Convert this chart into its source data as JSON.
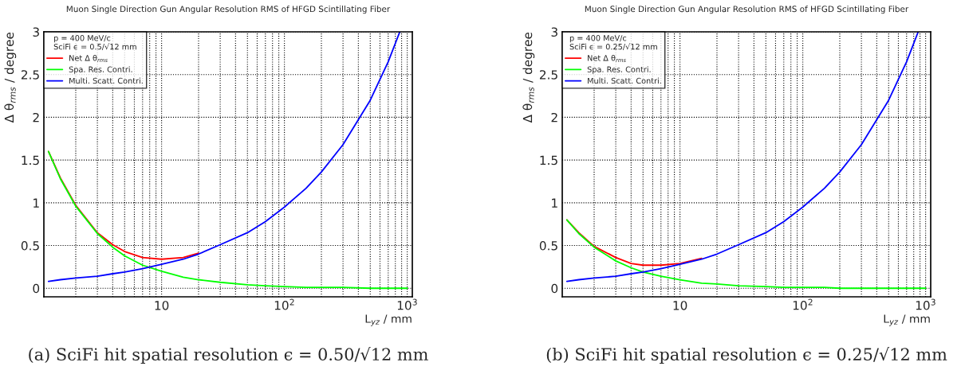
{
  "chart_data": [
    {
      "type": "line",
      "title": "Muon Single Direction Gun Angular Resolution RMS of HFGD Scintillating Fiber",
      "xlabel": "L$_{yz}$ / mm",
      "ylabel": "Δ θ$_{rms}$ / degree",
      "legend_title": "p = 400 MeV/c\nSciFi ϵ = 0.5/√12 mm",
      "legend": "top left",
      "log": "x",
      "grid": true,
      "x": [
        1.2,
        1.5,
        2,
        3,
        4,
        5,
        7,
        10,
        15,
        20,
        30,
        50,
        70,
        100,
        150,
        200,
        300,
        500,
        700,
        870,
        1000
      ],
      "series": [
        {
          "name": "Net Δ θ$_{rms}$",
          "color": "#ff0000",
          "values": [
            1.6,
            1.29,
            0.97,
            0.65,
            0.51,
            0.43,
            0.36,
            0.34,
            0.36,
            0.41,
            null,
            null,
            null,
            null,
            null,
            null,
            null,
            null,
            null,
            null,
            null
          ]
        },
        {
          "name": "Spa. Res. Contri.",
          "color": "#00ff00",
          "values": [
            1.6,
            1.28,
            0.96,
            0.64,
            0.48,
            0.38,
            0.27,
            0.2,
            0.13,
            0.1,
            0.07,
            0.04,
            0.03,
            0.02,
            0.01,
            0.01,
            0.01,
            0,
            0,
            0,
            0
          ]
        },
        {
          "name": "Multi. Scatt. Contri.",
          "color": "#0000ff",
          "values": [
            0.08,
            0.1,
            0.12,
            0.14,
            0.17,
            0.19,
            0.23,
            0.28,
            0.34,
            0.4,
            0.51,
            0.65,
            0.78,
            0.95,
            1.17,
            1.36,
            1.68,
            2.2,
            2.65,
            3.0,
            null
          ]
        }
      ],
      "xlim": [
        1.1,
        1100
      ],
      "ylim": [
        -0.1,
        3
      ],
      "xticks": [
        {
          "value": 2,
          "label": null
        },
        {
          "value": 3,
          "label": null
        },
        {
          "value": 4,
          "label": null
        },
        {
          "value": 5,
          "label": null
        },
        {
          "value": 6,
          "label": null
        },
        {
          "value": 7,
          "label": null
        },
        {
          "value": 8,
          "label": null
        },
        {
          "value": 9,
          "label": null
        },
        10,
        {
          "value": 20,
          "label": null
        },
        {
          "value": 30,
          "label": null
        },
        {
          "value": 40,
          "label": null
        },
        {
          "value": 50,
          "label": null
        },
        {
          "value": 60,
          "label": null
        },
        {
          "value": 70,
          "label": null
        },
        {
          "value": 80,
          "label": null
        },
        {
          "value": 90,
          "label": null
        },
        {
          "value": 100,
          "label": "10$^{2}$"
        },
        {
          "value": 200,
          "label": null
        },
        {
          "value": 300,
          "label": null
        },
        {
          "value": 400,
          "label": null
        },
        {
          "value": 500,
          "label": null
        },
        {
          "value": 600,
          "label": null
        },
        {
          "value": 700,
          "label": null
        },
        {
          "value": 800,
          "label": null
        },
        {
          "value": 900,
          "label": null
        },
        {
          "value": 1000,
          "label": "10$^{3}$"
        }
      ],
      "yticks": [
        0,
        0.5,
        1,
        1.5,
        2,
        2.5,
        3
      ],
      "annotations": [
        "(a) SciFi hit spatial resolution ϵ = 0.50/√12 mm"
      ]
    },
    {
      "type": "line",
      "title": "Muon Single Direction Gun Angular Resolution RMS of HFGD Scintillating Fiber",
      "xlabel": "L$_{yz}$ / mm",
      "ylabel": "Δ θ$_{rms}$ / degree",
      "legend_title": "p = 400 MeV/c\nSciFi ϵ = 0.25/√12 mm",
      "legend": "top left",
      "log": "x",
      "grid": true,
      "x": [
        1.2,
        1.5,
        2,
        3,
        4,
        5,
        7,
        10,
        15,
        20,
        30,
        50,
        70,
        100,
        150,
        200,
        300,
        500,
        700,
        870,
        1000
      ],
      "series": [
        {
          "name": "Net Δ θ$_{rms}$",
          "color": "#ff0000",
          "values": [
            0.8,
            0.65,
            0.49,
            0.36,
            0.29,
            0.27,
            0.27,
            0.29,
            0.35,
            null,
            null,
            null,
            null,
            null,
            null,
            null,
            null,
            null,
            null,
            null,
            null
          ]
        },
        {
          "name": "Spa. Res. Contri.",
          "color": "#00ff00",
          "values": [
            0.8,
            0.64,
            0.48,
            0.32,
            0.24,
            0.19,
            0.14,
            0.1,
            0.06,
            0.05,
            0.03,
            0.02,
            0.01,
            0.01,
            0.01,
            0,
            0,
            0,
            0,
            0,
            0
          ]
        },
        {
          "name": "Multi. Scatt. Contri.",
          "color": "#0000ff",
          "values": [
            0.08,
            0.1,
            0.12,
            0.14,
            0.17,
            0.19,
            0.23,
            0.28,
            0.34,
            0.4,
            0.51,
            0.65,
            0.78,
            0.95,
            1.17,
            1.36,
            1.68,
            2.2,
            2.65,
            3.0,
            null
          ]
        }
      ],
      "xlim": [
        1.1,
        1100
      ],
      "ylim": [
        -0.1,
        3
      ],
      "xticks": [
        {
          "value": 2,
          "label": null
        },
        {
          "value": 3,
          "label": null
        },
        {
          "value": 4,
          "label": null
        },
        {
          "value": 5,
          "label": null
        },
        {
          "value": 6,
          "label": null
        },
        {
          "value": 7,
          "label": null
        },
        {
          "value": 8,
          "label": null
        },
        {
          "value": 9,
          "label": null
        },
        10,
        {
          "value": 20,
          "label": null
        },
        {
          "value": 30,
          "label": null
        },
        {
          "value": 40,
          "label": null
        },
        {
          "value": 50,
          "label": null
        },
        {
          "value": 60,
          "label": null
        },
        {
          "value": 70,
          "label": null
        },
        {
          "value": 80,
          "label": null
        },
        {
          "value": 90,
          "label": null
        },
        {
          "value": 100,
          "label": "10$^{2}$"
        },
        {
          "value": 200,
          "label": null
        },
        {
          "value": 300,
          "label": null
        },
        {
          "value": 400,
          "label": null
        },
        {
          "value": 500,
          "label": null
        },
        {
          "value": 600,
          "label": null
        },
        {
          "value": 700,
          "label": null
        },
        {
          "value": 800,
          "label": null
        },
        {
          "value": 900,
          "label": null
        },
        {
          "value": 1000,
          "label": "10$^{3}$"
        }
      ],
      "yticks": [
        0,
        0.5,
        1,
        1.5,
        2,
        2.5,
        3
      ],
      "annotations": [
        "(b) SciFi hit spatial resolution ϵ = 0.25/√12 mm"
      ]
    }
  ]
}
